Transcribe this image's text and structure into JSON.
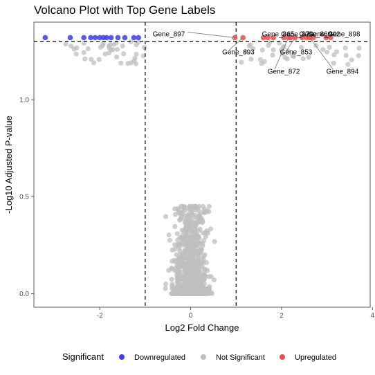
{
  "chart_data": {
    "type": "scatter",
    "title": "Volcano Plot with Top Gene Labels",
    "xlabel": "Log2 Fold Change",
    "ylabel": "-Log10 Adjusted P-value",
    "xlim": [
      -3.45,
      3.95
    ],
    "ylim": [
      -0.07,
      1.4
    ],
    "x_ticks": [
      -2,
      0,
      2,
      4
    ],
    "y_ticks": [
      0.0,
      0.5,
      1.0
    ],
    "y_tick_labels": [
      "0.0",
      "0.5",
      "1.0"
    ],
    "thresholds": {
      "x": [
        -1,
        1
      ],
      "y": 1.301
    },
    "grid": false,
    "legend": {
      "title": "Significant",
      "placement": "bottom",
      "entries": [
        {
          "label": "Downregulated",
          "color": "#3b3bf0"
        },
        {
          "label": "Not Significant",
          "color": "#bfbfbf"
        },
        {
          "label": "Upregulated",
          "color": "#f04a4a"
        }
      ]
    },
    "series": [
      {
        "name": "Downregulated",
        "color": "#3b3bf0",
        "points": [
          [
            -3.2,
            1.32
          ],
          [
            -2.65,
            1.32
          ],
          [
            -2.35,
            1.32
          ],
          [
            -2.2,
            1.32
          ],
          [
            -2.1,
            1.32
          ],
          [
            -2.0,
            1.32
          ],
          [
            -1.92,
            1.32
          ],
          [
            -1.85,
            1.32
          ],
          [
            -1.75,
            1.32
          ],
          [
            -1.6,
            1.32
          ],
          [
            -1.45,
            1.32
          ],
          [
            -1.25,
            1.32
          ],
          [
            -1.15,
            1.32
          ]
        ]
      },
      {
        "name": "Upregulated",
        "color": "#f04a4a",
        "points": [
          [
            0.97,
            1.32
          ],
          [
            1.15,
            1.32
          ],
          [
            1.6,
            1.32
          ],
          [
            1.7,
            1.32
          ],
          [
            1.82,
            1.32
          ],
          [
            2.05,
            1.32
          ],
          [
            2.15,
            1.32
          ],
          [
            2.2,
            1.32
          ],
          [
            2.3,
            1.32
          ],
          [
            2.45,
            1.32
          ],
          [
            2.55,
            1.32
          ],
          [
            2.62,
            1.32
          ],
          [
            2.7,
            1.32
          ],
          [
            2.98,
            1.32
          ],
          [
            3.08,
            1.32
          ]
        ]
      }
    ],
    "gene_labels": [
      {
        "text": "Gene_897",
        "x": 0.97,
        "y": 1.32
      },
      {
        "text": "Gene_865",
        "x": 1.6,
        "y": 1.32
      },
      {
        "text": "Gene_870",
        "x": 2.05,
        "y": 1.32
      },
      {
        "text": "Gene_860",
        "x": 2.45,
        "y": 1.32
      },
      {
        "text": "Gene_902",
        "x": 2.7,
        "y": 1.32
      },
      {
        "text": "Gene_898",
        "x": 3.08,
        "y": 1.32
      },
      {
        "text": "Gene_893",
        "x": 1.15,
        "y": 1.32
      },
      {
        "text": "Gene_853",
        "x": 2.3,
        "y": 1.32
      },
      {
        "text": "Gene_872",
        "x": 2.15,
        "y": 1.32
      },
      {
        "text": "Gene_894",
        "x": 2.62,
        "y": 1.32
      }
    ]
  }
}
